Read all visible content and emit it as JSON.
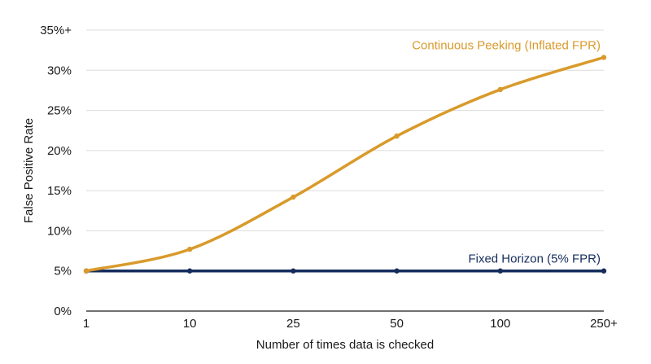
{
  "chart_data": {
    "type": "line",
    "title": "",
    "xlabel": "Number of times data is checked",
    "ylabel": "False Positive Rate",
    "categories": [
      "1",
      "10",
      "25",
      "50",
      "100",
      "250+"
    ],
    "y_ticks": [
      "0%",
      "5%",
      "10%",
      "15%",
      "20%",
      "25%",
      "30%",
      "35%+"
    ],
    "ylim": [
      0,
      35
    ],
    "grid": "horizontal",
    "series": [
      {
        "name": "Continuous Peeking (Inflated FPR)",
        "values": [
          5,
          7.7,
          14.2,
          21.8,
          27.6,
          31.6
        ],
        "color": "#d99a2b",
        "label_position": "end"
      },
      {
        "name": "Fixed Horizon (5% FPR)",
        "values": [
          5,
          5,
          5,
          5,
          5,
          5
        ],
        "color": "#142c5c",
        "label_position": "end"
      }
    ]
  }
}
